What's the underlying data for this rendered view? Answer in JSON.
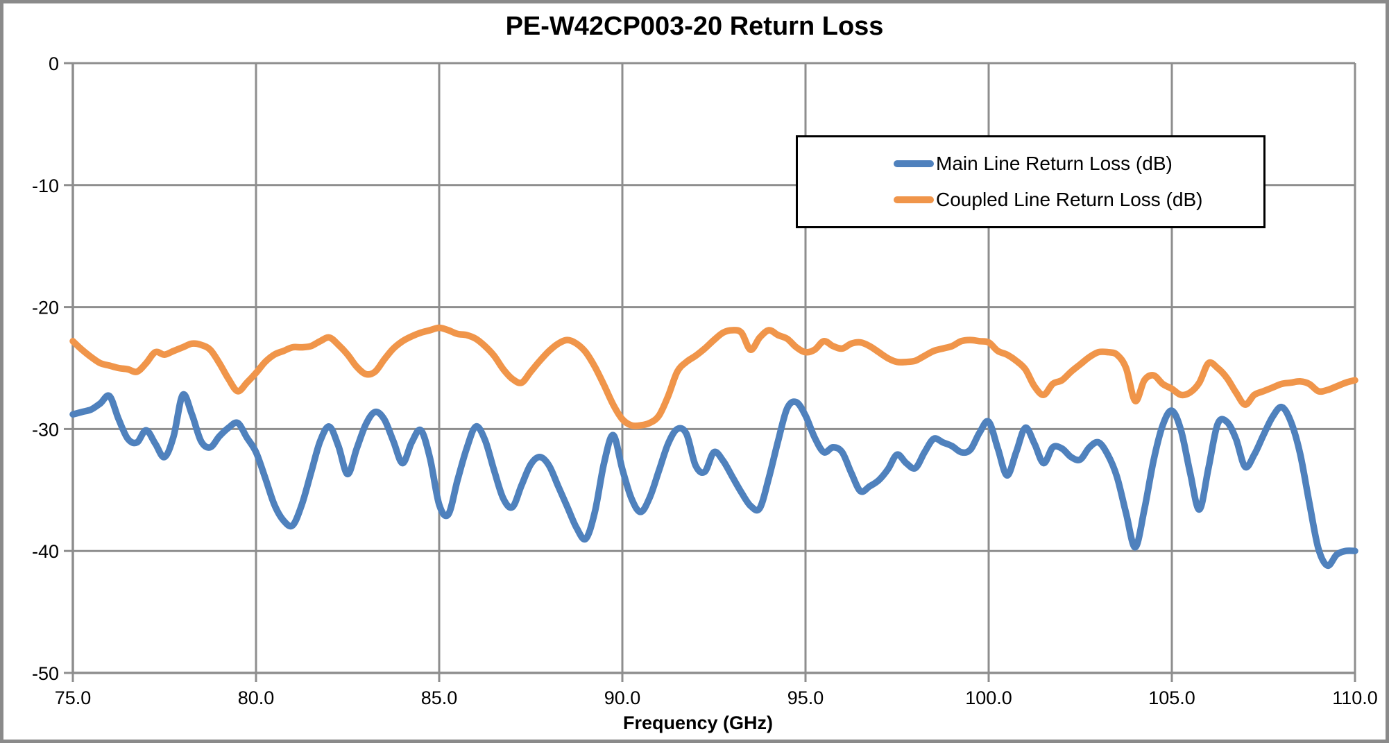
{
  "window": {
    "background": "#ffffff",
    "frame_color": "#8a8a8a",
    "gridline_color": "#8e8e8e",
    "text_color": "#000000"
  },
  "title": "PE-W42CP003-20 Return Loss",
  "axes": {
    "x": {
      "label": "Frequency (GHz)",
      "min": 75,
      "max": 110,
      "tick_step": 5,
      "tick_labels": [
        "75.0",
        "80.0",
        "85.0",
        "90.0",
        "95.0",
        "100.0",
        "105.0",
        "110.0"
      ]
    },
    "y": {
      "label": "",
      "min": -50,
      "max": 0,
      "tick_step": 10,
      "tick_labels": [
        "0",
        "-10",
        "-20",
        "-30",
        "-40",
        "-50"
      ]
    }
  },
  "legend": {
    "position": "upper-right-inside",
    "border_color": "#000000",
    "items": [
      {
        "label": "Main Line Return Loss (dB)",
        "color": "#4F81BD"
      },
      {
        "label": "Coupled Line Return Loss (dB)",
        "color": "#F0954A"
      }
    ]
  },
  "chart_data": {
    "type": "line",
    "title": "PE-W42CP003-20 Return Loss",
    "xlabel": "Frequency (GHz)",
    "ylabel": "",
    "xlim": [
      75,
      110
    ],
    "ylim": [
      -50,
      0
    ],
    "grid": true,
    "legend_position": "upper-right-inside",
    "x_start": 75.0,
    "x_step": 0.25,
    "x_end": 110.0,
    "series": [
      {
        "name": "Main Line Return Loss (dB)",
        "color": "#4F81BD",
        "values": [
          -28.8,
          -28.6,
          -28.4,
          -27.9,
          -27.3,
          -29.2,
          -30.8,
          -31.1,
          -30.1,
          -31.2,
          -32.3,
          -30.6,
          -27.2,
          -28.8,
          -31.0,
          -31.5,
          -30.6,
          -29.9,
          -29.5,
          -30.7,
          -31.9,
          -34.0,
          -36.2,
          -37.5,
          -37.9,
          -36.2,
          -33.6,
          -31.0,
          -29.8,
          -31.4,
          -33.7,
          -31.6,
          -29.6,
          -28.6,
          -29.2,
          -31.0,
          -32.8,
          -31.1,
          -30.1,
          -32.4,
          -36.2,
          -37.0,
          -34.2,
          -31.6,
          -29.8,
          -30.9,
          -33.4,
          -35.7,
          -36.4,
          -34.6,
          -32.9,
          -32.3,
          -33.0,
          -34.7,
          -36.4,
          -38.1,
          -39.0,
          -36.8,
          -32.8,
          -30.5,
          -33.3,
          -35.7,
          -36.8,
          -35.6,
          -33.4,
          -31.2,
          -30.0,
          -30.4,
          -33.0,
          -33.5,
          -31.9,
          -32.6,
          -33.9,
          -35.2,
          -36.3,
          -36.5,
          -34.0,
          -31.0,
          -28.3,
          -27.8,
          -28.9,
          -30.7,
          -31.9,
          -31.5,
          -31.9,
          -33.6,
          -35.1,
          -34.7,
          -34.2,
          -33.3,
          -32.1,
          -32.8,
          -33.2,
          -31.9,
          -30.8,
          -31.1,
          -31.4,
          -31.9,
          -31.7,
          -30.3,
          -29.4,
          -31.6,
          -33.8,
          -31.9,
          -29.9,
          -31.2,
          -32.8,
          -31.5,
          -31.6,
          -32.3,
          -32.5,
          -31.5,
          -31.1,
          -32.1,
          -33.9,
          -36.9,
          -39.7,
          -36.6,
          -32.6,
          -29.7,
          -28.5,
          -30.1,
          -33.6,
          -36.6,
          -33.2,
          -29.6,
          -29.4,
          -30.8,
          -33.1,
          -32.1,
          -30.5,
          -29.0,
          -28.2,
          -29.4,
          -32.0,
          -36.0,
          -39.8,
          -41.2,
          -40.3,
          -40.0,
          -40.0
        ]
      },
      {
        "name": "Coupled Line Return Loss (dB)",
        "color": "#F0954A",
        "values": [
          -22.8,
          -23.5,
          -24.1,
          -24.6,
          -24.8,
          -25.0,
          -25.1,
          -25.3,
          -24.6,
          -23.7,
          -23.9,
          -23.6,
          -23.3,
          -23.0,
          -23.1,
          -23.5,
          -24.6,
          -25.9,
          -26.9,
          -26.2,
          -25.4,
          -24.5,
          -23.9,
          -23.6,
          -23.3,
          -23.3,
          -23.2,
          -22.8,
          -22.5,
          -23.1,
          -23.9,
          -24.9,
          -25.5,
          -25.3,
          -24.3,
          -23.4,
          -22.8,
          -22.4,
          -22.1,
          -21.9,
          -21.7,
          -21.9,
          -22.2,
          -22.3,
          -22.6,
          -23.2,
          -24.0,
          -25.1,
          -25.9,
          -26.2,
          -25.3,
          -24.4,
          -23.6,
          -23.0,
          -22.7,
          -23.0,
          -23.7,
          -24.9,
          -26.4,
          -28.0,
          -29.2,
          -29.7,
          -29.7,
          -29.5,
          -28.9,
          -27.3,
          -25.3,
          -24.5,
          -24.0,
          -23.4,
          -22.7,
          -22.1,
          -21.9,
          -22.1,
          -23.5,
          -22.5,
          -21.9,
          -22.3,
          -22.6,
          -23.3,
          -23.7,
          -23.5,
          -22.8,
          -23.2,
          -23.4,
          -23.0,
          -22.9,
          -23.2,
          -23.7,
          -24.2,
          -24.5,
          -24.5,
          -24.4,
          -24.0,
          -23.6,
          -23.4,
          -23.2,
          -22.8,
          -22.7,
          -22.8,
          -22.9,
          -23.6,
          -23.9,
          -24.4,
          -25.1,
          -26.5,
          -27.2,
          -26.3,
          -26.0,
          -25.3,
          -24.7,
          -24.1,
          -23.7,
          -23.7,
          -23.9,
          -25.0,
          -27.7,
          -26.0,
          -25.6,
          -26.3,
          -26.7,
          -27.2,
          -27.0,
          -26.2,
          -24.6,
          -25.0,
          -25.8,
          -27.0,
          -28.0,
          -27.2,
          -26.9,
          -26.6,
          -26.3,
          -26.2,
          -26.1,
          -26.3,
          -26.9,
          -26.8,
          -26.5,
          -26.2,
          -26.0
        ]
      }
    ]
  }
}
